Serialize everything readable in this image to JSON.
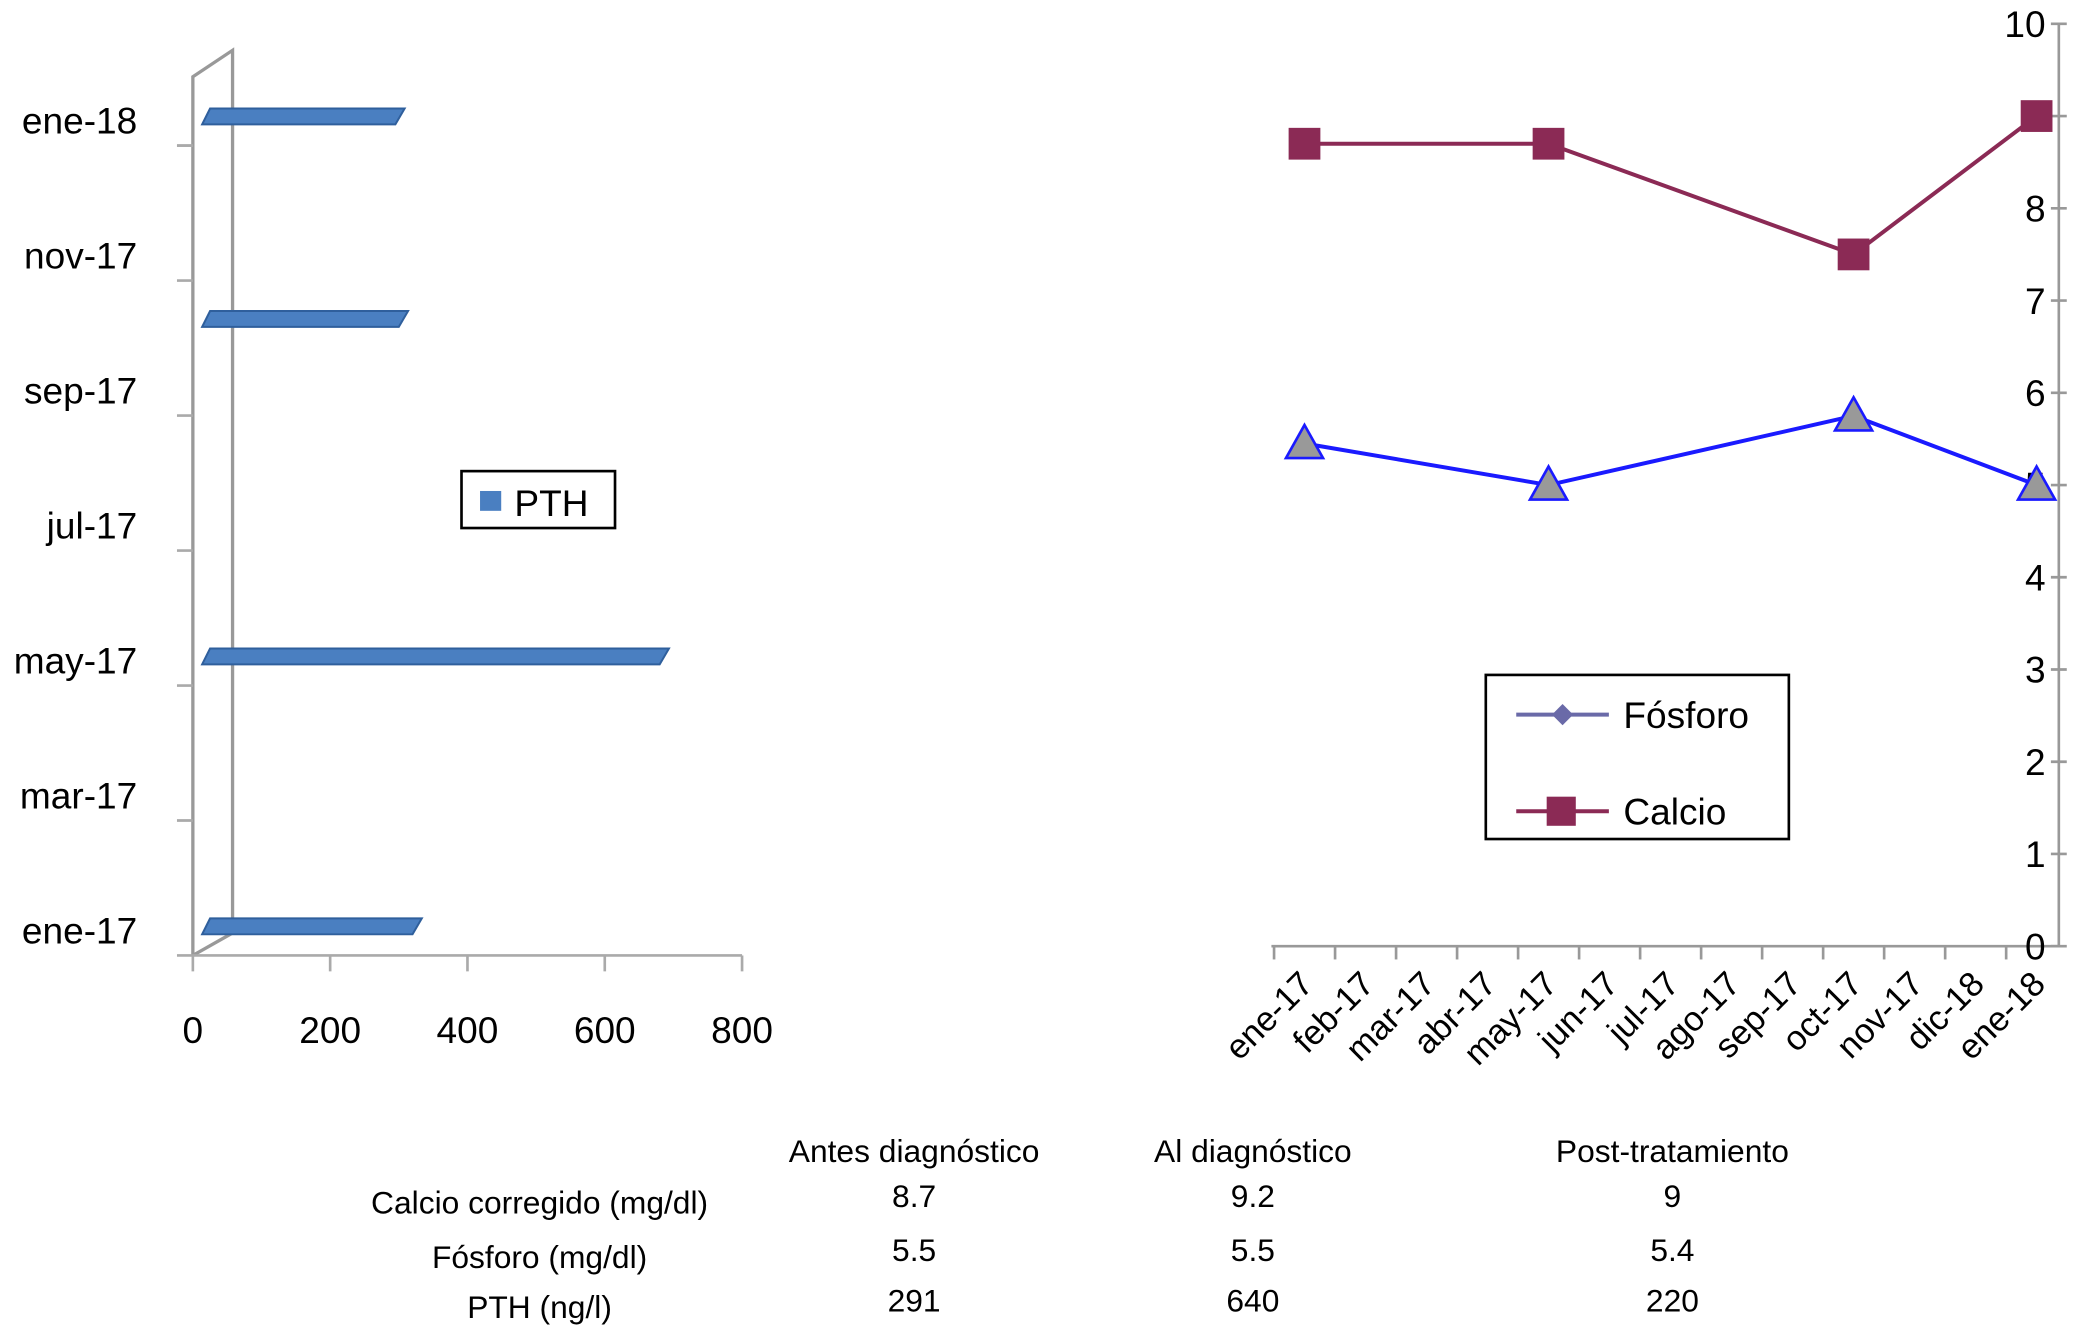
{
  "chart_data": [
    {
      "type": "bar",
      "orientation": "horizontal",
      "categories": [
        "ene-17",
        "mar-17",
        "may-17",
        "jul-17",
        "sep-17",
        "nov-17",
        "ene-18"
      ],
      "bar_points": [
        {
          "month": "ene-17",
          "value": 320
        },
        {
          "month": "may-17",
          "value": 680
        },
        {
          "month": "oct-17",
          "value": 300
        },
        {
          "month": "ene-18",
          "value": 295
        }
      ],
      "xlim": [
        0,
        800
      ],
      "xticks": [
        "0",
        "200",
        "400",
        "600",
        "800"
      ],
      "legend": [
        "PTH"
      ],
      "legend_position": "center-right",
      "color": "#4a7fc1"
    },
    {
      "type": "line",
      "categories": [
        "ene-17",
        "feb-17",
        "mar-17",
        "abr-17",
        "may-17",
        "jun-17",
        "jul-17",
        "ago-17",
        "sep-17",
        "oct-17",
        "nov-17",
        "dic-18",
        "ene-18"
      ],
      "series": [
        {
          "name": "Fósforo",
          "points": [
            {
              "month": "ene-17",
              "value": 5.45
            },
            {
              "month": "may-17",
              "value": 5.0
            },
            {
              "month": "oct-17",
              "value": 5.75
            },
            {
              "month": "ene-18",
              "value": 5.0
            }
          ],
          "color": "#1a1aff",
          "marker": "triangle"
        },
        {
          "name": "Calcio",
          "points": [
            {
              "month": "ene-17",
              "value": 8.7
            },
            {
              "month": "may-17",
              "value": 8.7
            },
            {
              "month": "oct-17",
              "value": 7.5
            },
            {
              "month": "ene-18",
              "value": 9.0
            }
          ],
          "color": "#8b2a55",
          "marker": "square"
        }
      ],
      "ylim": [
        0,
        10
      ],
      "yticks": [
        "0",
        "1",
        "2",
        "3",
        "4",
        "5",
        "6",
        "7",
        "8",
        "9",
        "10"
      ],
      "yaxis_position": "right",
      "legend_position": "lower-center"
    },
    {
      "type": "table",
      "columns": [
        "Antes diagnóstico",
        "Al diagnóstico",
        "Post-tratamiento"
      ],
      "rows": [
        {
          "label": "Calcio corregido (mg/dl)",
          "values": [
            "8.7",
            "9.2",
            "9"
          ]
        },
        {
          "label": "Fósforo (mg/dl)",
          "values": [
            "5.5",
            "5.5",
            "5.4"
          ]
        },
        {
          "label": "PTH (ng/l)",
          "values": [
            "291",
            "640",
            "220"
          ]
        }
      ]
    }
  ]
}
